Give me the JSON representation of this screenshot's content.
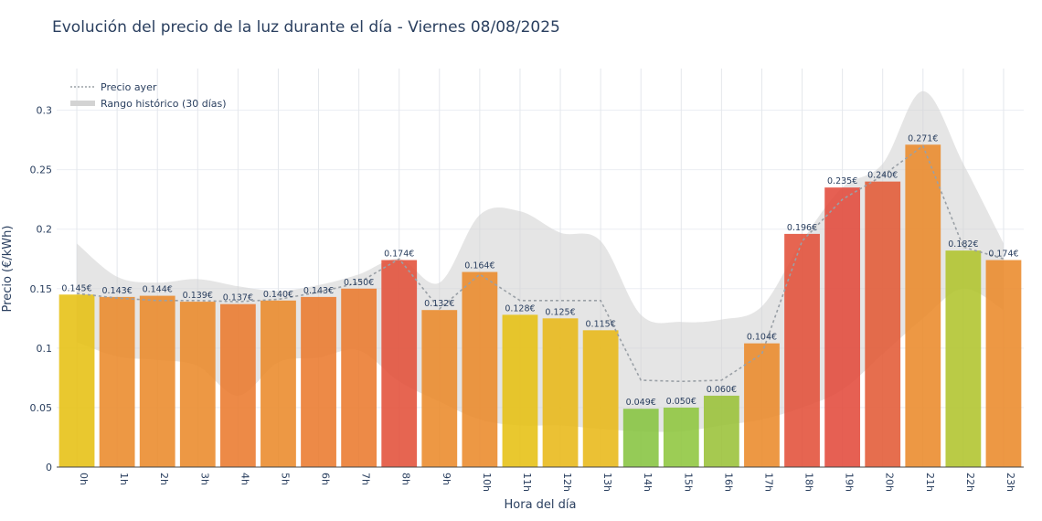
{
  "chart_data": {
    "type": "bar",
    "title": "Evolución del precio de la luz durante el día - Viernes 08/08/2025",
    "xlabel": "Hora del día",
    "ylabel": "Precio (€/kWh)",
    "ylim": [
      0,
      0.335
    ],
    "yticks": [
      0,
      0.05,
      0.1,
      0.15,
      0.2,
      0.25,
      0.3
    ],
    "ytick_labels": [
      "0",
      "0.05",
      "0.1",
      "0.15",
      "0.2",
      "0.25",
      "0.3"
    ],
    "grid": true,
    "legend_position": "top-left",
    "categories": [
      "0h",
      "1h",
      "2h",
      "3h",
      "4h",
      "5h",
      "6h",
      "7h",
      "8h",
      "9h",
      "10h",
      "11h",
      "12h",
      "13h",
      "14h",
      "15h",
      "16h",
      "17h",
      "18h",
      "19h",
      "20h",
      "21h",
      "22h",
      "23h"
    ],
    "series": [
      {
        "type": "bar",
        "values": [
          0.145,
          0.143,
          0.144,
          0.139,
          0.137,
          0.14,
          0.143,
          0.15,
          0.174,
          0.132,
          0.164,
          0.128,
          0.125,
          0.115,
          0.049,
          0.05,
          0.06,
          0.104,
          0.196,
          0.235,
          0.24,
          0.271,
          0.182,
          0.174
        ],
        "labels": [
          "0.145€",
          "0.143€",
          "0.144€",
          "0.139€",
          "0.137€",
          "0.140€",
          "0.143€",
          "0.150€",
          "0.174€",
          "0.132€",
          "0.164€",
          "0.128€",
          "0.125€",
          "0.115€",
          "0.049€",
          "0.050€",
          "0.060€",
          "0.104€",
          "0.196€",
          "0.235€",
          "0.240€",
          "0.271€",
          "0.182€",
          "0.174€"
        ],
        "colors": [
          "#e6c012",
          "#ea8a2a",
          "#ea8a2a",
          "#ea8a2a",
          "#ea7a2e",
          "#ea8a2a",
          "#ea7a2e",
          "#ea7a2e",
          "#e35039",
          "#ea8a2a",
          "#ea8a2a",
          "#e6c012",
          "#e8b818",
          "#e8b818",
          "#86c440",
          "#8ec63e",
          "#9ac238",
          "#ea8a2a",
          "#e35039",
          "#e24a3b",
          "#e35a36",
          "#ea8a2a",
          "#b0c42c",
          "#ea8a2a"
        ]
      },
      {
        "name": "Precio ayer",
        "type": "line",
        "values": [
          0.146,
          0.142,
          0.14,
          0.14,
          0.139,
          0.141,
          0.147,
          0.155,
          0.175,
          0.133,
          0.162,
          0.14,
          0.14,
          0.14,
          0.073,
          0.072,
          0.073,
          0.095,
          0.19,
          0.225,
          0.245,
          0.27,
          0.185,
          0.175
        ],
        "color": "#9aa0a6"
      },
      {
        "name": "Rango histórico (30 días)",
        "type": "area",
        "upper": [
          0.188,
          0.16,
          0.155,
          0.158,
          0.152,
          0.148,
          0.153,
          0.162,
          0.175,
          0.155,
          0.212,
          0.215,
          0.197,
          0.19,
          0.128,
          0.122,
          0.124,
          0.135,
          0.19,
          0.235,
          0.255,
          0.316,
          0.255,
          0.188
        ],
        "lower": [
          0.105,
          0.093,
          0.09,
          0.085,
          0.06,
          0.088,
          0.092,
          0.098,
          0.072,
          0.055,
          0.04,
          0.035,
          0.035,
          0.032,
          0.03,
          0.03,
          0.035,
          0.04,
          0.05,
          0.065,
          0.095,
          0.125,
          0.15,
          0.132
        ],
        "color": "#d3d3d3"
      }
    ]
  }
}
